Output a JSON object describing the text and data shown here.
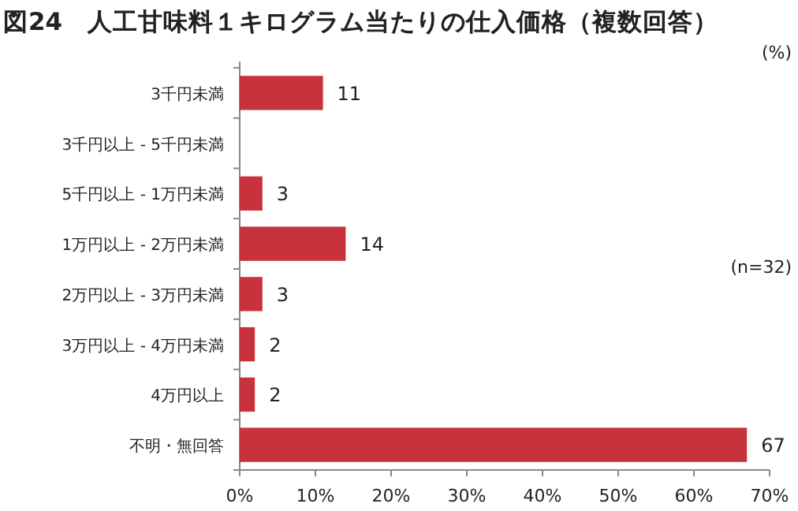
{
  "chart_data": {
    "type": "bar",
    "orientation": "horizontal",
    "title": "図24　人工甘味料１キログラム当たりの仕入価格（複数回答）",
    "categories": [
      "3千円未満",
      "3千円以上 - 5千円未満",
      "5千円以上 - 1万円未満",
      "1万円以上 - 2万円未満",
      "2万円以上 - 3万円未満",
      "3万円以上 - 4万円未満",
      "4万円以上",
      "不明・無回答"
    ],
    "values": [
      11,
      0,
      3,
      14,
      3,
      2,
      2,
      67
    ],
    "value_labels": [
      "11",
      null,
      "3",
      "14",
      "3",
      "2",
      "2",
      "67"
    ],
    "color": "#c8323c",
    "xlim": [
      0,
      70
    ],
    "xticks": [
      {
        "value": 0,
        "label": "0%"
      },
      {
        "value": 10,
        "label": "10%"
      },
      {
        "value": 20,
        "label": "20%"
      },
      {
        "value": 30,
        "label": "30%"
      },
      {
        "value": 40,
        "label": "40%"
      },
      {
        "value": 50,
        "label": "50%"
      },
      {
        "value": 60,
        "label": "60%"
      },
      {
        "value": 70,
        "label": "70%"
      }
    ],
    "grid": false,
    "annotations": [
      "(%)",
      "(n=32)"
    ]
  }
}
